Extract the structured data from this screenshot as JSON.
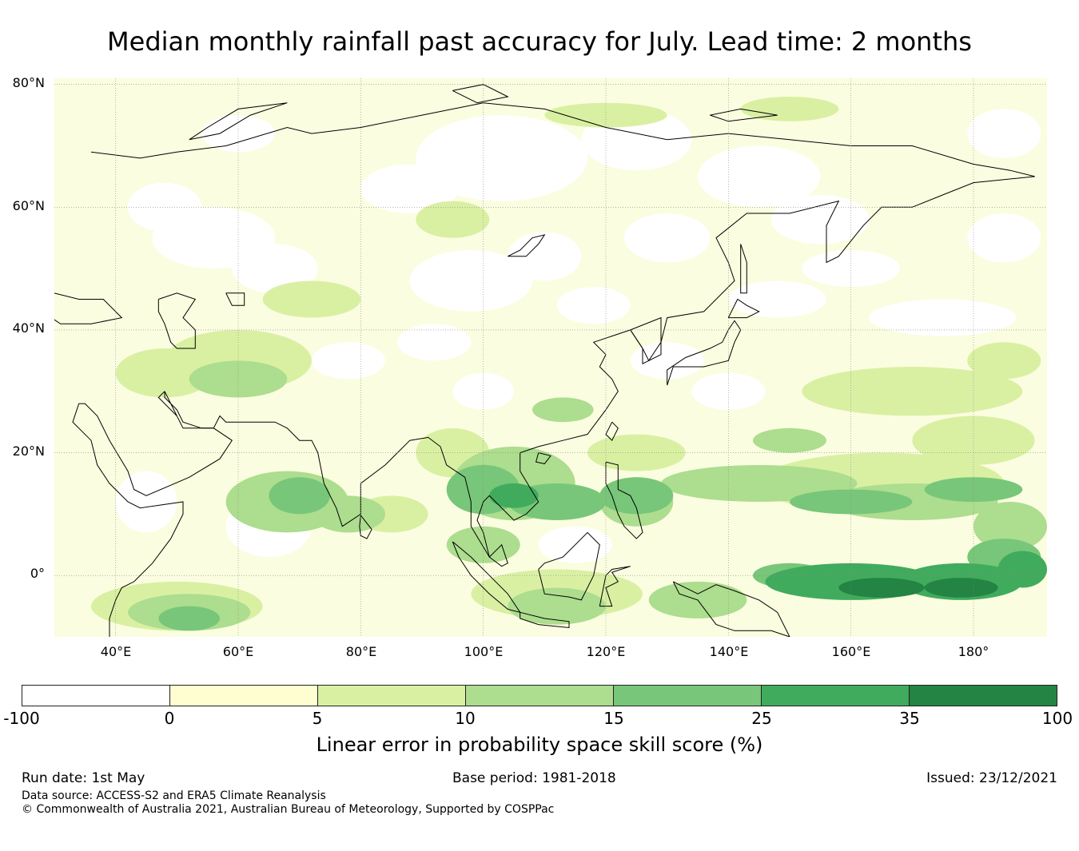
{
  "title": "Median monthly rainfall past accuracy for July. Lead time: 2 months",
  "map": {
    "region": "Asia and Western Pacific",
    "projection": "equirectangular",
    "lon_range": [
      30,
      192
    ],
    "lat_range": [
      -10,
      81
    ],
    "lat_labels": [
      "80°N",
      "60°N",
      "40°N",
      "20°N",
      "0°"
    ],
    "lon_labels": [
      "40°E",
      "60°E",
      "80°E",
      "100°E",
      "120°E",
      "140°E",
      "160°E",
      "180°"
    ],
    "gridlines": true
  },
  "colorbar": {
    "ticks": [
      "-100",
      "0",
      "5",
      "10",
      "15",
      "25",
      "35",
      "100"
    ],
    "colors": [
      "#ffffff",
      "#fefed0",
      "#d9f0a3",
      "#addd8e",
      "#78c679",
      "#41ab5d",
      "#238443"
    ],
    "label": "Linear error in probability space skill score (%)"
  },
  "footer": {
    "run_date": "Run date: 1st May",
    "base_period": "Base period: 1981-2018",
    "issued": "Issued: 23/12/2021",
    "data_source": "Data source: ACCESS-S2 and ERA5 Climate Reanalysis",
    "copyright": "© Commonwealth of Australia 2021, Australian Bureau of Meteorology, Supported by COSPPac"
  }
}
